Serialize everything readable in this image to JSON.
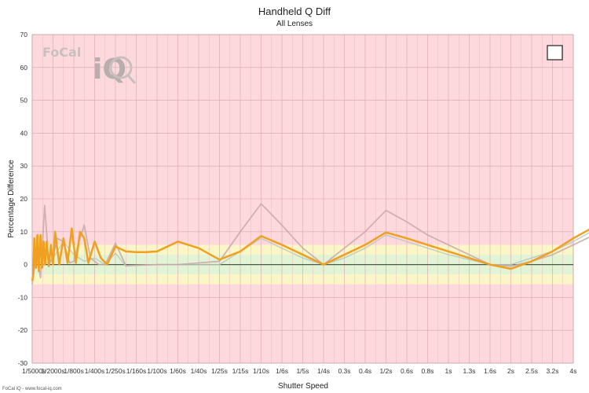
{
  "chart_data": {
    "type": "line",
    "title": "Handheld Q Diff",
    "subtitle": "All Lenses",
    "xlabel": "Shutter Speed",
    "ylabel": "Percentage Difference",
    "ylim": [
      -30,
      70
    ],
    "yticks": [
      -30,
      -20,
      -10,
      0,
      10,
      20,
      30,
      40,
      50,
      60,
      70
    ],
    "categories": [
      "1/5000s",
      "1/2000s",
      "1/800s",
      "1/400s",
      "1/250s",
      "1/160s",
      "1/100s",
      "1/60s",
      "1/40s",
      "1/25s",
      "1/15s",
      "1/10s",
      "1/6s",
      "1/5s",
      "1/4s",
      "0.3s",
      "0.4s",
      "1/2s",
      "0.6s",
      "0.8s",
      "1s",
      "1.3s",
      "1.6s",
      "2s",
      "2.5s",
      "3.2s",
      "4s"
    ],
    "grid": true,
    "bands": [
      {
        "from": -6,
        "to": 6,
        "color": "#fbf6c8"
      },
      {
        "from": -3,
        "to": 3,
        "color": "#e3f4d6"
      }
    ],
    "background_color": "#fdd9dd",
    "series": [
      {
        "name": "",
        "color": "#f0a020",
        "width": 2.5,
        "points": [
          [
            0.0,
            -5
          ],
          [
            0.05,
            -3
          ],
          [
            0.1,
            8
          ],
          [
            0.18,
            -1
          ],
          [
            0.25,
            9
          ],
          [
            0.32,
            -2
          ],
          [
            0.4,
            9
          ],
          [
            0.48,
            -1
          ],
          [
            0.55,
            7
          ],
          [
            0.62,
            0
          ],
          [
            0.7,
            7
          ],
          [
            0.8,
            -0.5
          ],
          [
            0.9,
            6
          ],
          [
            1.0,
            0
          ],
          [
            1.1,
            10
          ],
          [
            1.3,
            0
          ],
          [
            1.5,
            8
          ],
          [
            1.7,
            0.5
          ],
          [
            1.9,
            11
          ],
          [
            2.1,
            0.5
          ],
          [
            2.3,
            10
          ],
          [
            2.5,
            8
          ],
          [
            2.7,
            0.5
          ],
          [
            3.0,
            7
          ],
          [
            3.3,
            2
          ],
          [
            3.6,
            0
          ],
          [
            4.0,
            5.5
          ],
          [
            4.5,
            4
          ],
          [
            5.0,
            3.8
          ],
          [
            5.5,
            3.8
          ],
          [
            6.0,
            4.0
          ],
          [
            7.0,
            7
          ],
          [
            8.0,
            5
          ],
          [
            9.0,
            1.5
          ],
          [
            10.0,
            4
          ],
          [
            11.0,
            8.7
          ],
          [
            12.0,
            6
          ],
          [
            13.0,
            3
          ],
          [
            14.0,
            0
          ],
          [
            15.0,
            3
          ],
          [
            16.0,
            6
          ],
          [
            17.0,
            9.8
          ],
          [
            18.0,
            8
          ],
          [
            19.0,
            6
          ],
          [
            20.0,
            4
          ],
          [
            21.0,
            2
          ],
          [
            22.0,
            0
          ],
          [
            23.0,
            -1.3
          ],
          [
            24.0,
            1
          ],
          [
            25.0,
            4
          ],
          [
            26.0,
            8
          ],
          [
            27.0,
            11.5
          ]
        ]
      },
      {
        "name": "",
        "color": "#c8a8aa",
        "width": 1.8,
        "points": [
          [
            0.0,
            -6
          ],
          [
            0.2,
            3
          ],
          [
            0.4,
            -4
          ],
          [
            0.6,
            18
          ],
          [
            0.8,
            0
          ],
          [
            1.0,
            2
          ],
          [
            1.2,
            8
          ],
          [
            1.5,
            7
          ],
          [
            1.8,
            0.5
          ],
          [
            2.0,
            1
          ],
          [
            2.2,
            6
          ],
          [
            2.5,
            12
          ],
          [
            2.8,
            2
          ],
          [
            3.2,
            0
          ],
          [
            3.5,
            0
          ],
          [
            4.0,
            6.5
          ],
          [
            4.5,
            -0.3
          ],
          [
            5.0,
            -0.2
          ],
          [
            6.0,
            0
          ],
          [
            7.0,
            0
          ],
          [
            8.0,
            0.5
          ],
          [
            9.0,
            1
          ],
          [
            10.0,
            10
          ],
          [
            11.0,
            18.5
          ],
          [
            12.0,
            12
          ],
          [
            13.0,
            5
          ],
          [
            14.0,
            0
          ],
          [
            15.0,
            5
          ],
          [
            16.0,
            10
          ],
          [
            17.0,
            16.5
          ],
          [
            18.0,
            13
          ],
          [
            19.0,
            9
          ],
          [
            20.0,
            6
          ],
          [
            21.0,
            3
          ],
          [
            22.0,
            0
          ],
          [
            23.0,
            -0.5
          ],
          [
            24.0,
            1
          ],
          [
            25.0,
            3
          ],
          [
            26.0,
            6
          ],
          [
            27.0,
            9
          ]
        ]
      },
      {
        "name": "",
        "color": "#b8c8b8",
        "width": 1.5,
        "points": [
          [
            0.0,
            0
          ],
          [
            0.3,
            1
          ],
          [
            0.6,
            0
          ],
          [
            1.0,
            2
          ],
          [
            1.5,
            7
          ],
          [
            2.0,
            3
          ],
          [
            2.5,
            1
          ],
          [
            3.0,
            2
          ],
          [
            3.5,
            0
          ],
          [
            4.0,
            3.5
          ],
          [
            4.5,
            -0.5
          ],
          [
            5.0,
            -0.2
          ],
          [
            6.0,
            0
          ],
          [
            7.0,
            0
          ],
          [
            8.0,
            0
          ],
          [
            9.0,
            0
          ],
          [
            10.0,
            4
          ],
          [
            11.0,
            8
          ],
          [
            12.0,
            5
          ],
          [
            13.0,
            2
          ],
          [
            14.0,
            0
          ],
          [
            15.0,
            2
          ],
          [
            16.0,
            5
          ],
          [
            17.0,
            9
          ],
          [
            18.0,
            7
          ],
          [
            19.0,
            5
          ],
          [
            20.0,
            3
          ],
          [
            21.0,
            1.5
          ],
          [
            22.0,
            0
          ],
          [
            23.0,
            0
          ],
          [
            24.0,
            2
          ],
          [
            25.0,
            4
          ],
          [
            26.0,
            7
          ],
          [
            27.0,
            10.5
          ]
        ]
      }
    ],
    "zero_line_color": "#4a5a48"
  },
  "logo": {
    "part1": "FoCal",
    "part2": "iQ"
  },
  "credit": "FoCal iQ - www.focal-iq.com"
}
